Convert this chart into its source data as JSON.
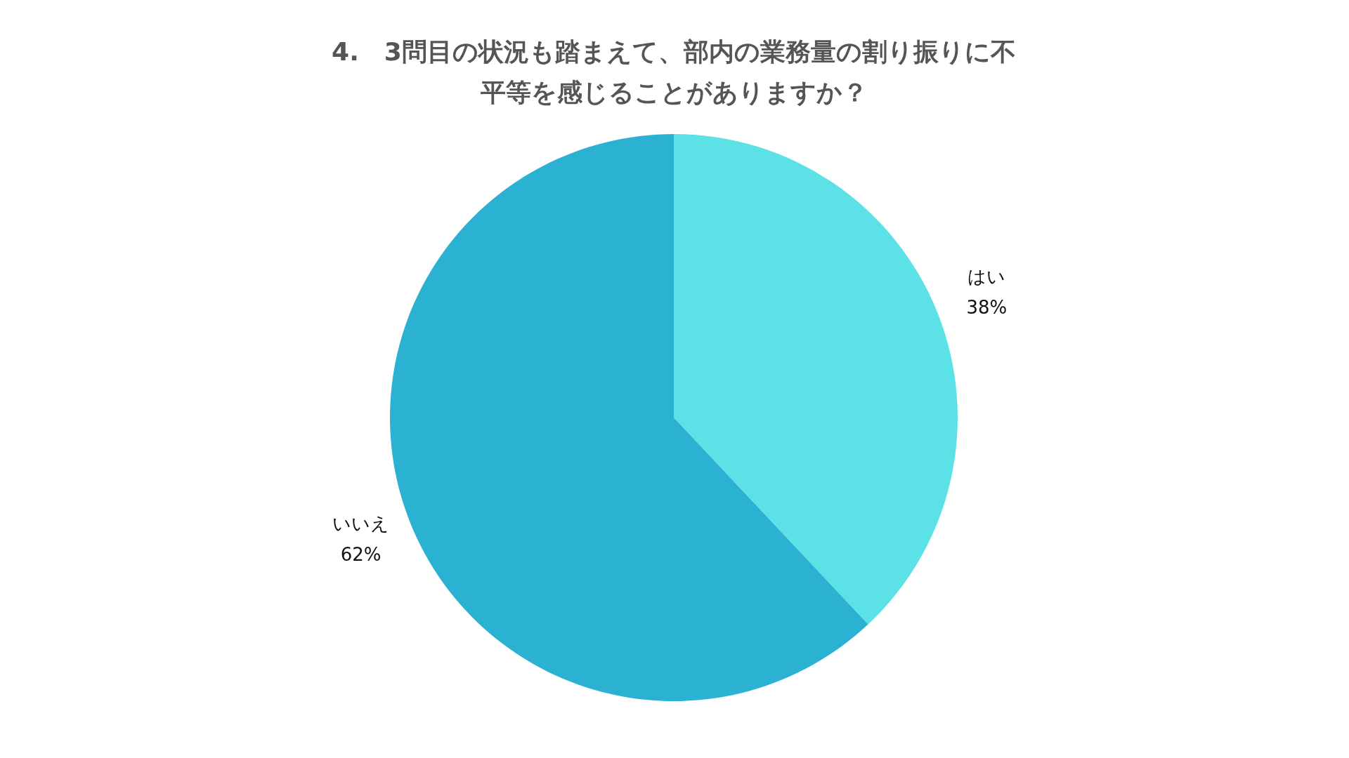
{
  "chart_data": {
    "type": "pie",
    "title": "4.　3問目の状況も踏まえて、部内の業務量の割り振りに不平等を感じることがありますか？",
    "categories": [
      "はい",
      "いいえ"
    ],
    "values": [
      38,
      62
    ],
    "colors": [
      "#5ce1e6",
      "#2bb2d3"
    ],
    "value_labels": [
      "38%",
      "62%"
    ]
  }
}
